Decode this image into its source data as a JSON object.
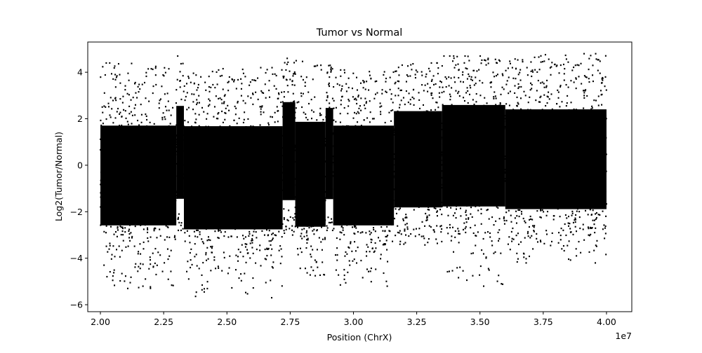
{
  "chart_data": {
    "type": "scatter",
    "title": "Tumor vs Normal",
    "xlabel": "Position (ChrX)",
    "ylabel": "Log2(Tumor/Normal)",
    "x_offset_label": "1e7",
    "xlim": [
      1.95,
      4.1
    ],
    "ylim": [
      -6.3,
      5.3
    ],
    "x_ticks": [
      2.0,
      2.25,
      2.5,
      2.75,
      3.0,
      3.25,
      3.5,
      3.75,
      4.0
    ],
    "x_tick_labels": [
      "2.00",
      "2.25",
      "2.50",
      "2.75",
      "3.00",
      "3.25",
      "3.50",
      "3.75",
      "4.00"
    ],
    "y_ticks": [
      -6,
      -4,
      -2,
      0,
      2,
      4
    ],
    "y_tick_labels": [
      "−6",
      "−4",
      "−2",
      "0",
      "2",
      "4"
    ],
    "grid": false,
    "marker_color": "#000000",
    "segments": [
      {
        "x_start": 2.0,
        "x_end": 2.3,
        "upper": 2.4,
        "lower": -3.4,
        "outlier_max": 4.4,
        "outlier_min": -5.3
      },
      {
        "x_start": 2.3,
        "x_end": 2.33,
        "upper": 3.2,
        "lower": -2.2,
        "outlier_max": 4.7,
        "outlier_min": -2.8
      },
      {
        "x_start": 2.33,
        "x_end": 2.72,
        "upper": 2.4,
        "lower": -3.6,
        "outlier_max": 4.2,
        "outlier_min": -5.7
      },
      {
        "x_start": 2.72,
        "x_end": 2.77,
        "upper": 3.4,
        "lower": -2.3,
        "outlier_max": 4.6,
        "outlier_min": -3.0
      },
      {
        "x_start": 2.77,
        "x_end": 2.89,
        "upper": 2.6,
        "lower": -3.5,
        "outlier_max": 4.5,
        "outlier_min": -4.8
      },
      {
        "x_start": 2.89,
        "x_end": 2.92,
        "upper": 3.1,
        "lower": -2.2,
        "outlier_max": 4.3,
        "outlier_min": -2.8
      },
      {
        "x_start": 2.92,
        "x_end": 3.16,
        "upper": 2.4,
        "lower": -3.4,
        "outlier_max": 4.1,
        "outlier_min": -5.2
      },
      {
        "x_start": 3.16,
        "x_end": 3.35,
        "upper": 3.0,
        "lower": -2.6,
        "outlier_max": 4.4,
        "outlier_min": -3.5
      },
      {
        "x_start": 3.35,
        "x_end": 3.6,
        "upper": 3.3,
        "lower": -2.6,
        "outlier_max": 4.7,
        "outlier_min": -5.3
      },
      {
        "x_start": 3.6,
        "x_end": 4.0,
        "upper": 3.1,
        "lower": -2.7,
        "outlier_max": 4.8,
        "outlier_min": -4.2
      }
    ]
  }
}
